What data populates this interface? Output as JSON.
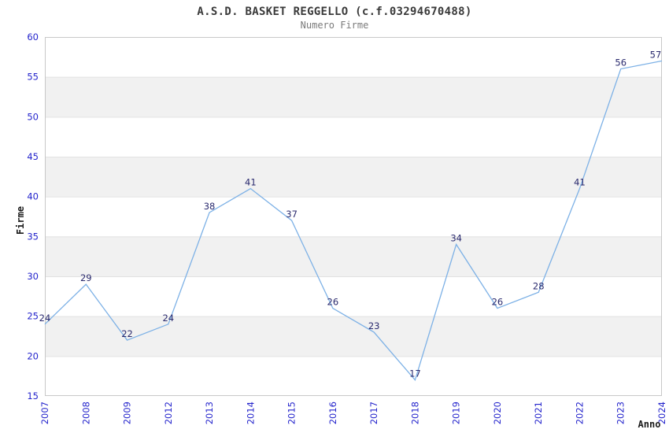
{
  "chart_data": {
    "type": "line",
    "title": "A.S.D. BASKET REGGELLO (c.f.03294670488)",
    "subtitle": "Numero Firme",
    "categories": [
      "2007",
      "2008",
      "2009",
      "2012",
      "2013",
      "2014",
      "2015",
      "2016",
      "2017",
      "2018",
      "2019",
      "2020",
      "2021",
      "2022",
      "2023",
      "2024"
    ],
    "values": [
      24,
      29,
      22,
      24,
      38,
      41,
      37,
      26,
      23,
      17,
      34,
      26,
      28,
      41,
      56,
      57
    ],
    "xlabel": "Anno",
    "ylabel": "Firme",
    "ylim": [
      15,
      60
    ],
    "ytick_step": 5,
    "yticks": [
      15,
      20,
      25,
      30,
      35,
      40,
      45,
      50,
      55,
      60
    ],
    "grid_bands": [
      [
        20,
        25
      ],
      [
        30,
        35
      ],
      [
        40,
        45
      ],
      [
        50,
        55
      ]
    ],
    "legend": "none",
    "data_labels_visible": true,
    "colors": {
      "line": "#7db1e6",
      "tick_label": "#2424cc",
      "data_label": "#2a2a6e",
      "band": "#f1f1f1",
      "gridline": "#e2e2e2",
      "plot_border": "#c8c8c8",
      "title": "#3a3a3a",
      "subtitle": "#7b7b7b",
      "axis_title": "#1a1a1a"
    }
  }
}
